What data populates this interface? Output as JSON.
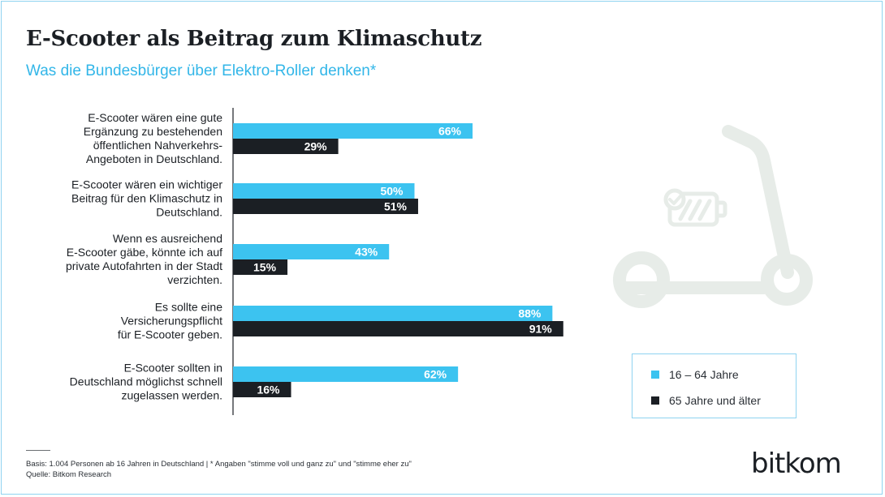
{
  "title": "E-Scooter als Beitrag zum Klimaschutz",
  "subtitle": "Was die Bundesbürger über Elektro-Roller denken*",
  "footer": {
    "basis": "Basis: 1.004 Personen ab 16 Jahren in Deutschland | * Angaben \"stimme voll und ganz zu\" und \"stimme eher zu\"",
    "source": "Quelle: Bitkom Research"
  },
  "logo": "bitkom",
  "legend": [
    {
      "label": "16 – 64 Jahre",
      "color": "#3cc3f0"
    },
    {
      "label": "65 Jahre und älter",
      "color": "#1b1f24"
    }
  ],
  "icon": "e-scooter-illustration-icon",
  "chart_data": {
    "type": "bar",
    "orientation": "horizontal",
    "unit": "%",
    "xlim": [
      0,
      100
    ],
    "categories": [
      [
        "E-Scooter wären eine gute",
        "Ergänzung zu bestehenden",
        "öffentlichen Nahverkehrs-",
        "Angeboten in Deutschland."
      ],
      [
        "E-Scooter wären ein wichtiger",
        "Beitrag für den Klimaschutz in",
        "Deutschland."
      ],
      [
        "Wenn es ausreichend",
        "E-Scooter gäbe, könnte ich auf",
        "private  Autofahrten in der Stadt",
        "verzichten."
      ],
      [
        "Es sollte eine",
        "Versicherungspflicht",
        "für E-Scooter geben."
      ],
      [
        "E-Scooter sollten in",
        "Deutschland möglichst schnell",
        "zugelassen werden."
      ]
    ],
    "series": [
      {
        "name": "16 – 64 Jahre",
        "color": "#3cc3f0",
        "values": [
          66,
          50,
          43,
          88,
          62
        ]
      },
      {
        "name": "65 Jahre und älter",
        "color": "#1b1f24",
        "values": [
          29,
          51,
          15,
          91,
          16
        ]
      }
    ]
  }
}
